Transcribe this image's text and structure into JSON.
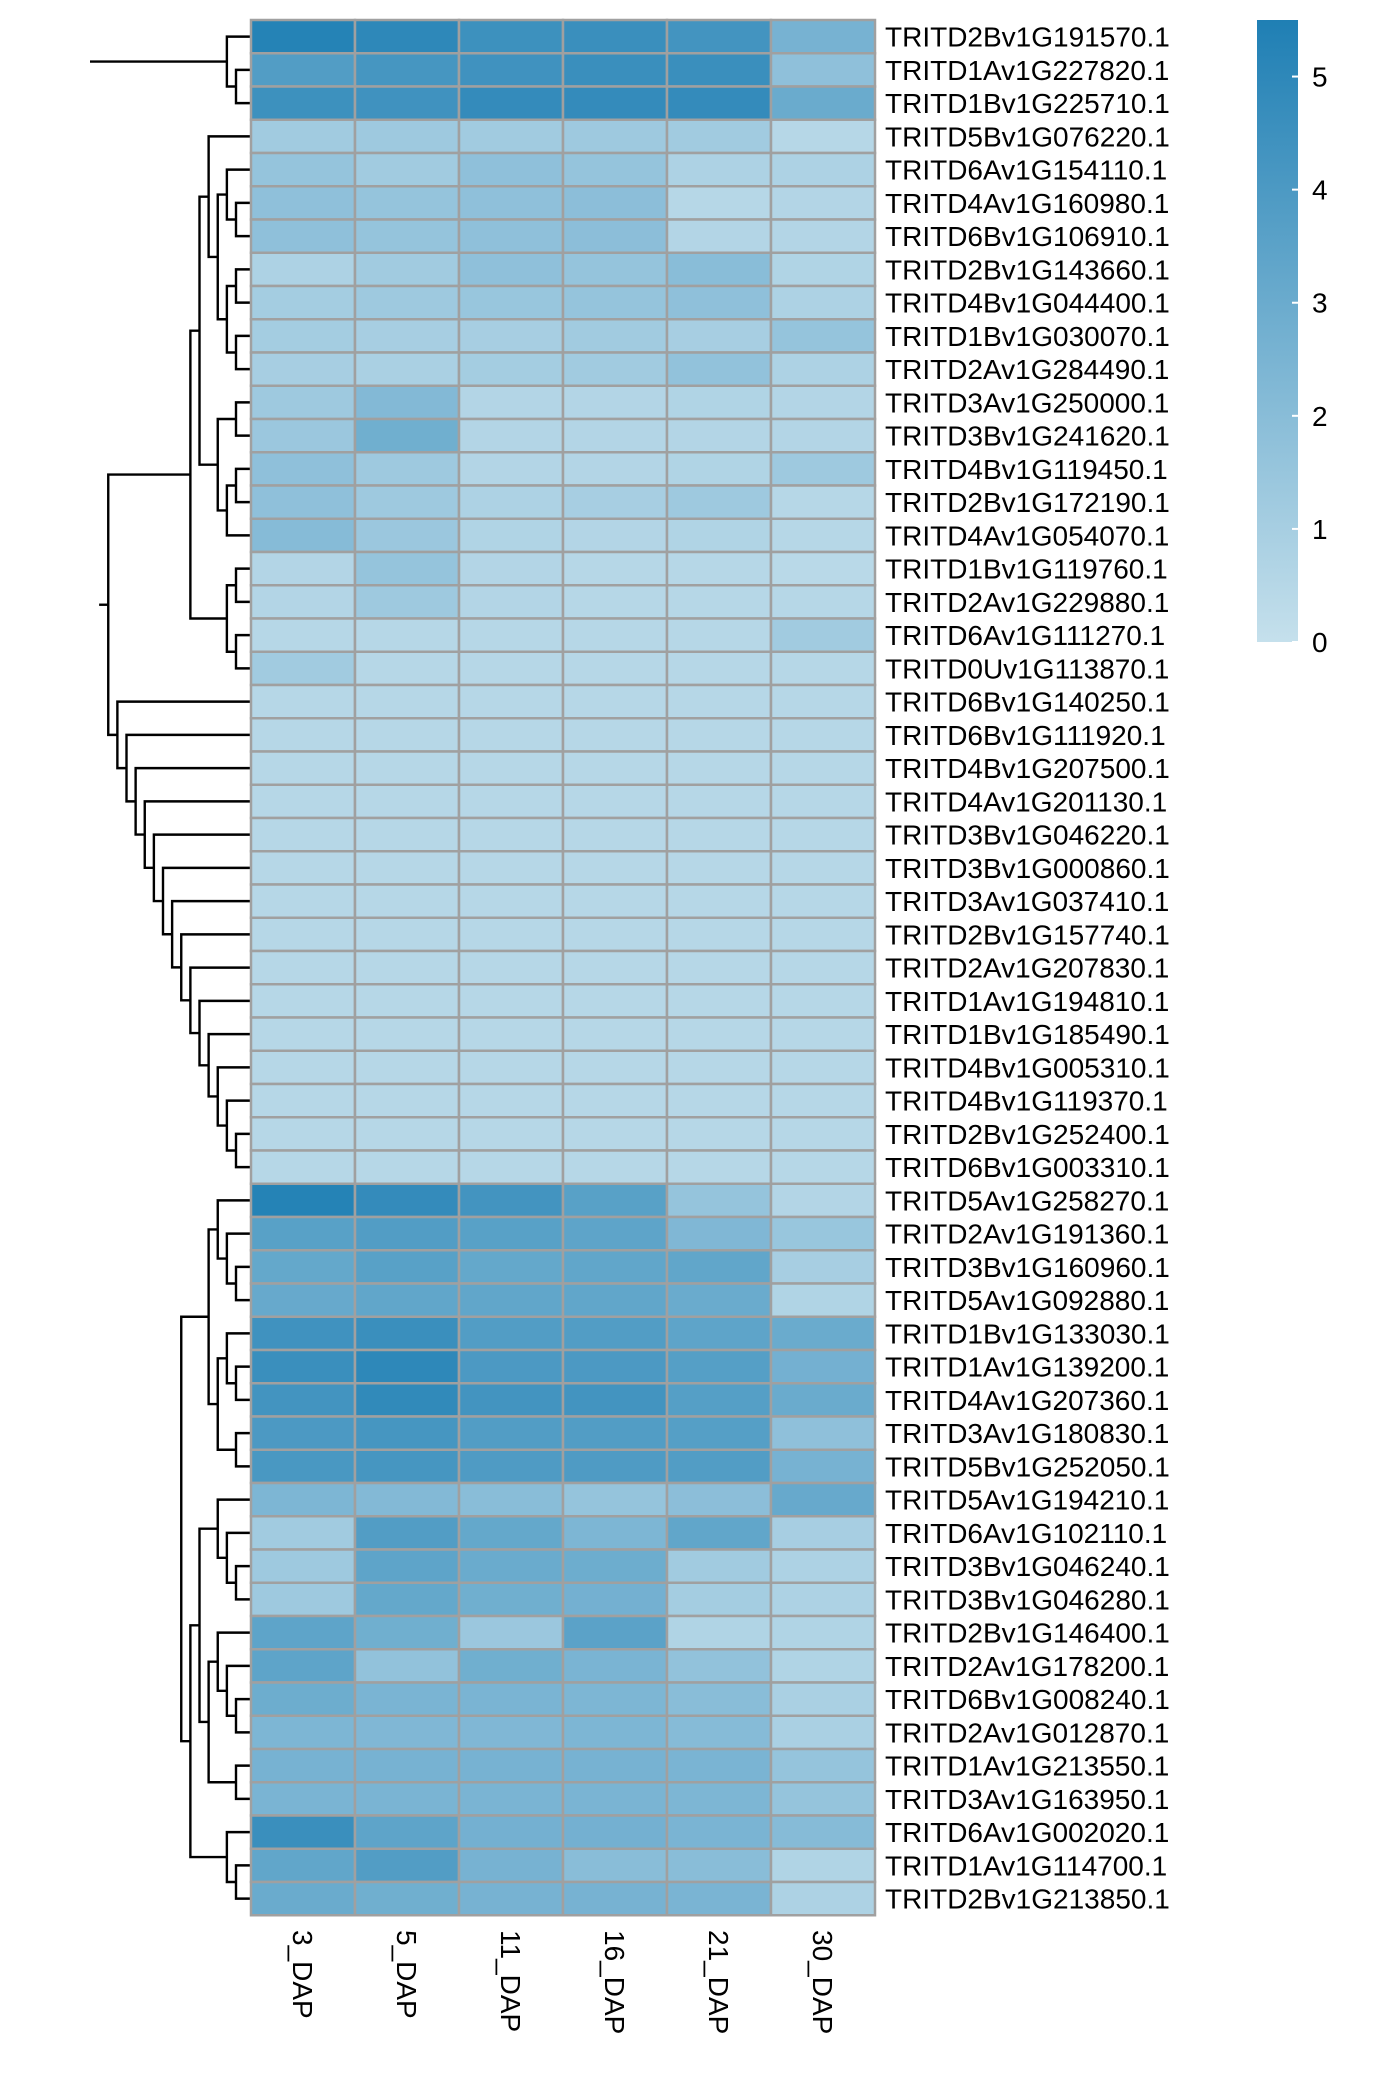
{
  "chart_data": {
    "type": "heatmap",
    "title": "",
    "columns": [
      "3_DAP",
      "5_DAP",
      "11_DAP",
      "16_DAP",
      "21_DAP",
      "30_DAP"
    ],
    "rows": [
      {
        "gene": "TRITD2Bv1G191570.1",
        "values": [
          5.3,
          5.0,
          4.5,
          4.6,
          4.3,
          2.6
        ]
      },
      {
        "gene": "TRITD1Av1G227820.1",
        "values": [
          3.8,
          4.2,
          4.4,
          4.6,
          4.6,
          1.8
        ]
      },
      {
        "gene": "TRITD1Bv1G225710.1",
        "values": [
          4.5,
          4.4,
          4.8,
          4.8,
          4.8,
          3.0
        ]
      },
      {
        "gene": "TRITD5Bv1G076220.1",
        "values": [
          1.2,
          1.3,
          1.2,
          1.3,
          1.2,
          0.5
        ]
      },
      {
        "gene": "TRITD6Av1G154110.1",
        "values": [
          1.6,
          1.2,
          1.8,
          1.6,
          0.8,
          0.8
        ]
      },
      {
        "gene": "TRITD4Av1G160980.1",
        "values": [
          1.8,
          1.6,
          1.8,
          1.9,
          0.5,
          0.6
        ]
      },
      {
        "gene": "TRITD6Bv1G106910.1",
        "values": [
          1.8,
          1.6,
          1.8,
          1.9,
          0.6,
          0.6
        ]
      },
      {
        "gene": "TRITD2Bv1G143660.1",
        "values": [
          0.8,
          1.2,
          1.8,
          1.6,
          2.0,
          0.7
        ]
      },
      {
        "gene": "TRITD4Bv1G044400.1",
        "values": [
          1.1,
          1.3,
          1.5,
          1.6,
          1.8,
          0.8
        ]
      },
      {
        "gene": "TRITD1Bv1G030070.1",
        "values": [
          1.1,
          1.0,
          1.0,
          1.2,
          1.0,
          1.6
        ]
      },
      {
        "gene": "TRITD2Av1G284490.1",
        "values": [
          1.0,
          0.9,
          1.1,
          1.2,
          1.7,
          0.8
        ]
      },
      {
        "gene": "TRITD3Av1G250000.1",
        "values": [
          1.3,
          2.2,
          0.6,
          0.6,
          0.7,
          0.6
        ]
      },
      {
        "gene": "TRITD3Bv1G241620.1",
        "values": [
          1.4,
          2.8,
          0.6,
          0.6,
          0.6,
          0.6
        ]
      },
      {
        "gene": "TRITD4Bv1G119450.1",
        "values": [
          1.8,
          1.3,
          0.6,
          0.6,
          0.7,
          1.3
        ]
      },
      {
        "gene": "TRITD2Bv1G172190.1",
        "values": [
          1.8,
          1.3,
          0.8,
          1.0,
          1.3,
          0.5
        ]
      },
      {
        "gene": "TRITD4Av1G054070.1",
        "values": [
          2.1,
          1.4,
          0.7,
          0.6,
          0.7,
          0.5
        ]
      },
      {
        "gene": "TRITD1Bv1G119760.1",
        "values": [
          0.6,
          1.6,
          0.6,
          0.5,
          0.5,
          0.4
        ]
      },
      {
        "gene": "TRITD2Av1G229880.1",
        "values": [
          0.6,
          1.3,
          0.6,
          0.5,
          0.5,
          0.5
        ]
      },
      {
        "gene": "TRITD6Av1G111270.1",
        "values": [
          0.5,
          0.5,
          0.5,
          0.5,
          0.5,
          1.2
        ]
      },
      {
        "gene": "TRITD0Uv1G113870.1",
        "values": [
          1.2,
          0.5,
          0.5,
          0.5,
          0.5,
          0.5
        ]
      },
      {
        "gene": "TRITD6Bv1G140250.1",
        "values": [
          0.5,
          0.5,
          0.5,
          0.5,
          0.5,
          0.5
        ]
      },
      {
        "gene": "TRITD6Bv1G111920.1",
        "values": [
          0.5,
          0.5,
          0.5,
          0.5,
          0.5,
          0.5
        ]
      },
      {
        "gene": "TRITD4Bv1G207500.1",
        "values": [
          0.5,
          0.5,
          0.5,
          0.5,
          0.5,
          0.5
        ]
      },
      {
        "gene": "TRITD4Av1G201130.1",
        "values": [
          0.5,
          0.5,
          0.5,
          0.5,
          0.5,
          0.5
        ]
      },
      {
        "gene": "TRITD3Bv1G046220.1",
        "values": [
          0.5,
          0.5,
          0.5,
          0.5,
          0.5,
          0.5
        ]
      },
      {
        "gene": "TRITD3Bv1G000860.1",
        "values": [
          0.5,
          0.5,
          0.5,
          0.5,
          0.5,
          0.5
        ]
      },
      {
        "gene": "TRITD3Av1G037410.1",
        "values": [
          0.5,
          0.5,
          0.5,
          0.5,
          0.5,
          0.5
        ]
      },
      {
        "gene": "TRITD2Bv1G157740.1",
        "values": [
          0.5,
          0.5,
          0.5,
          0.5,
          0.5,
          0.5
        ]
      },
      {
        "gene": "TRITD2Av1G207830.1",
        "values": [
          0.5,
          0.5,
          0.5,
          0.5,
          0.5,
          0.5
        ]
      },
      {
        "gene": "TRITD1Av1G194810.1",
        "values": [
          0.5,
          0.5,
          0.5,
          0.5,
          0.5,
          0.5
        ]
      },
      {
        "gene": "TRITD1Bv1G185490.1",
        "values": [
          0.5,
          0.5,
          0.5,
          0.5,
          0.5,
          0.5
        ]
      },
      {
        "gene": "TRITD4Bv1G005310.1",
        "values": [
          0.5,
          0.5,
          0.5,
          0.5,
          0.5,
          0.5
        ]
      },
      {
        "gene": "TRITD4Bv1G119370.1",
        "values": [
          0.5,
          0.5,
          0.5,
          0.5,
          0.5,
          0.5
        ]
      },
      {
        "gene": "TRITD2Bv1G252400.1",
        "values": [
          0.5,
          0.5,
          0.5,
          0.5,
          0.5,
          0.5
        ]
      },
      {
        "gene": "TRITD6Bv1G003310.1",
        "values": [
          0.5,
          0.5,
          0.5,
          0.5,
          0.5,
          0.5
        ]
      },
      {
        "gene": "TRITD5Av1G258270.1",
        "values": [
          5.3,
          4.8,
          4.3,
          3.6,
          1.6,
          0.6
        ]
      },
      {
        "gene": "TRITD2Av1G191360.1",
        "values": [
          3.6,
          3.8,
          3.6,
          3.4,
          2.3,
          1.5
        ]
      },
      {
        "gene": "TRITD3Bv1G160960.1",
        "values": [
          3.2,
          3.6,
          3.2,
          3.3,
          3.3,
          1.0
        ]
      },
      {
        "gene": "TRITD5Av1G092880.1",
        "values": [
          3.1,
          3.3,
          3.3,
          3.3,
          3.0,
          0.7
        ]
      },
      {
        "gene": "TRITD1Bv1G133030.1",
        "values": [
          4.4,
          4.6,
          3.8,
          3.8,
          3.4,
          3.0
        ]
      },
      {
        "gene": "TRITD1Av1G139200.1",
        "values": [
          4.6,
          5.0,
          4.0,
          4.0,
          3.7,
          2.7
        ]
      },
      {
        "gene": "TRITD4Av1G207360.1",
        "values": [
          4.3,
          4.9,
          4.3,
          4.3,
          3.7,
          3.0
        ]
      },
      {
        "gene": "TRITD3Av1G180830.1",
        "values": [
          4.0,
          4.2,
          3.8,
          3.8,
          3.7,
          1.8
        ]
      },
      {
        "gene": "TRITD5Bv1G252050.1",
        "values": [
          4.1,
          4.2,
          3.9,
          3.9,
          3.8,
          2.6
        ]
      },
      {
        "gene": "TRITD5Av1G194210.1",
        "values": [
          2.4,
          2.2,
          2.0,
          1.6,
          1.9,
          3.1
        ]
      },
      {
        "gene": "TRITD6Av1G102110.1",
        "values": [
          1.2,
          3.8,
          3.2,
          2.4,
          3.3,
          1.0
        ]
      },
      {
        "gene": "TRITD3Bv1G046240.1",
        "values": [
          1.3,
          3.4,
          3.0,
          2.9,
          1.2,
          0.8
        ]
      },
      {
        "gene": "TRITD3Bv1G046280.1",
        "values": [
          1.3,
          3.2,
          2.8,
          2.7,
          1.1,
          0.8
        ]
      },
      {
        "gene": "TRITD2Bv1G146400.1",
        "values": [
          3.4,
          2.8,
          1.4,
          3.5,
          0.7,
          0.7
        ]
      },
      {
        "gene": "TRITD2Av1G178200.1",
        "values": [
          3.4,
          1.7,
          2.8,
          2.5,
          1.7,
          0.7
        ]
      },
      {
        "gene": "TRITD6Bv1G008240.1",
        "values": [
          2.9,
          2.5,
          2.5,
          2.4,
          2.0,
          0.9
        ]
      },
      {
        "gene": "TRITD2Av1G012870.1",
        "values": [
          2.4,
          2.3,
          2.3,
          2.4,
          2.1,
          0.9
        ]
      },
      {
        "gene": "TRITD1Av1G213550.1",
        "values": [
          2.6,
          2.6,
          2.6,
          2.6,
          2.5,
          1.6
        ]
      },
      {
        "gene": "TRITD3Av1G163950.1",
        "values": [
          2.5,
          2.5,
          2.5,
          2.5,
          2.4,
          1.6
        ]
      },
      {
        "gene": "TRITD6Av1G002020.1",
        "values": [
          4.6,
          3.4,
          2.7,
          2.7,
          2.5,
          2.1
        ]
      },
      {
        "gene": "TRITD1Av1G114700.1",
        "values": [
          3.3,
          3.8,
          2.6,
          2.0,
          2.0,
          0.7
        ]
      },
      {
        "gene": "TRITD2Bv1G213850.1",
        "values": [
          3.0,
          2.8,
          2.6,
          2.6,
          2.5,
          0.8
        ]
      }
    ],
    "color_scale": {
      "min": 0,
      "max": 5.5,
      "low_color": "#c5e0ec",
      "high_color": "#1f7fb4",
      "ticks": [
        0,
        1,
        2,
        3,
        4,
        5
      ]
    },
    "cell_border_color": "#a0a0a0",
    "dendrogram": "hierarchical clustering tree of rows drawn on the left"
  }
}
